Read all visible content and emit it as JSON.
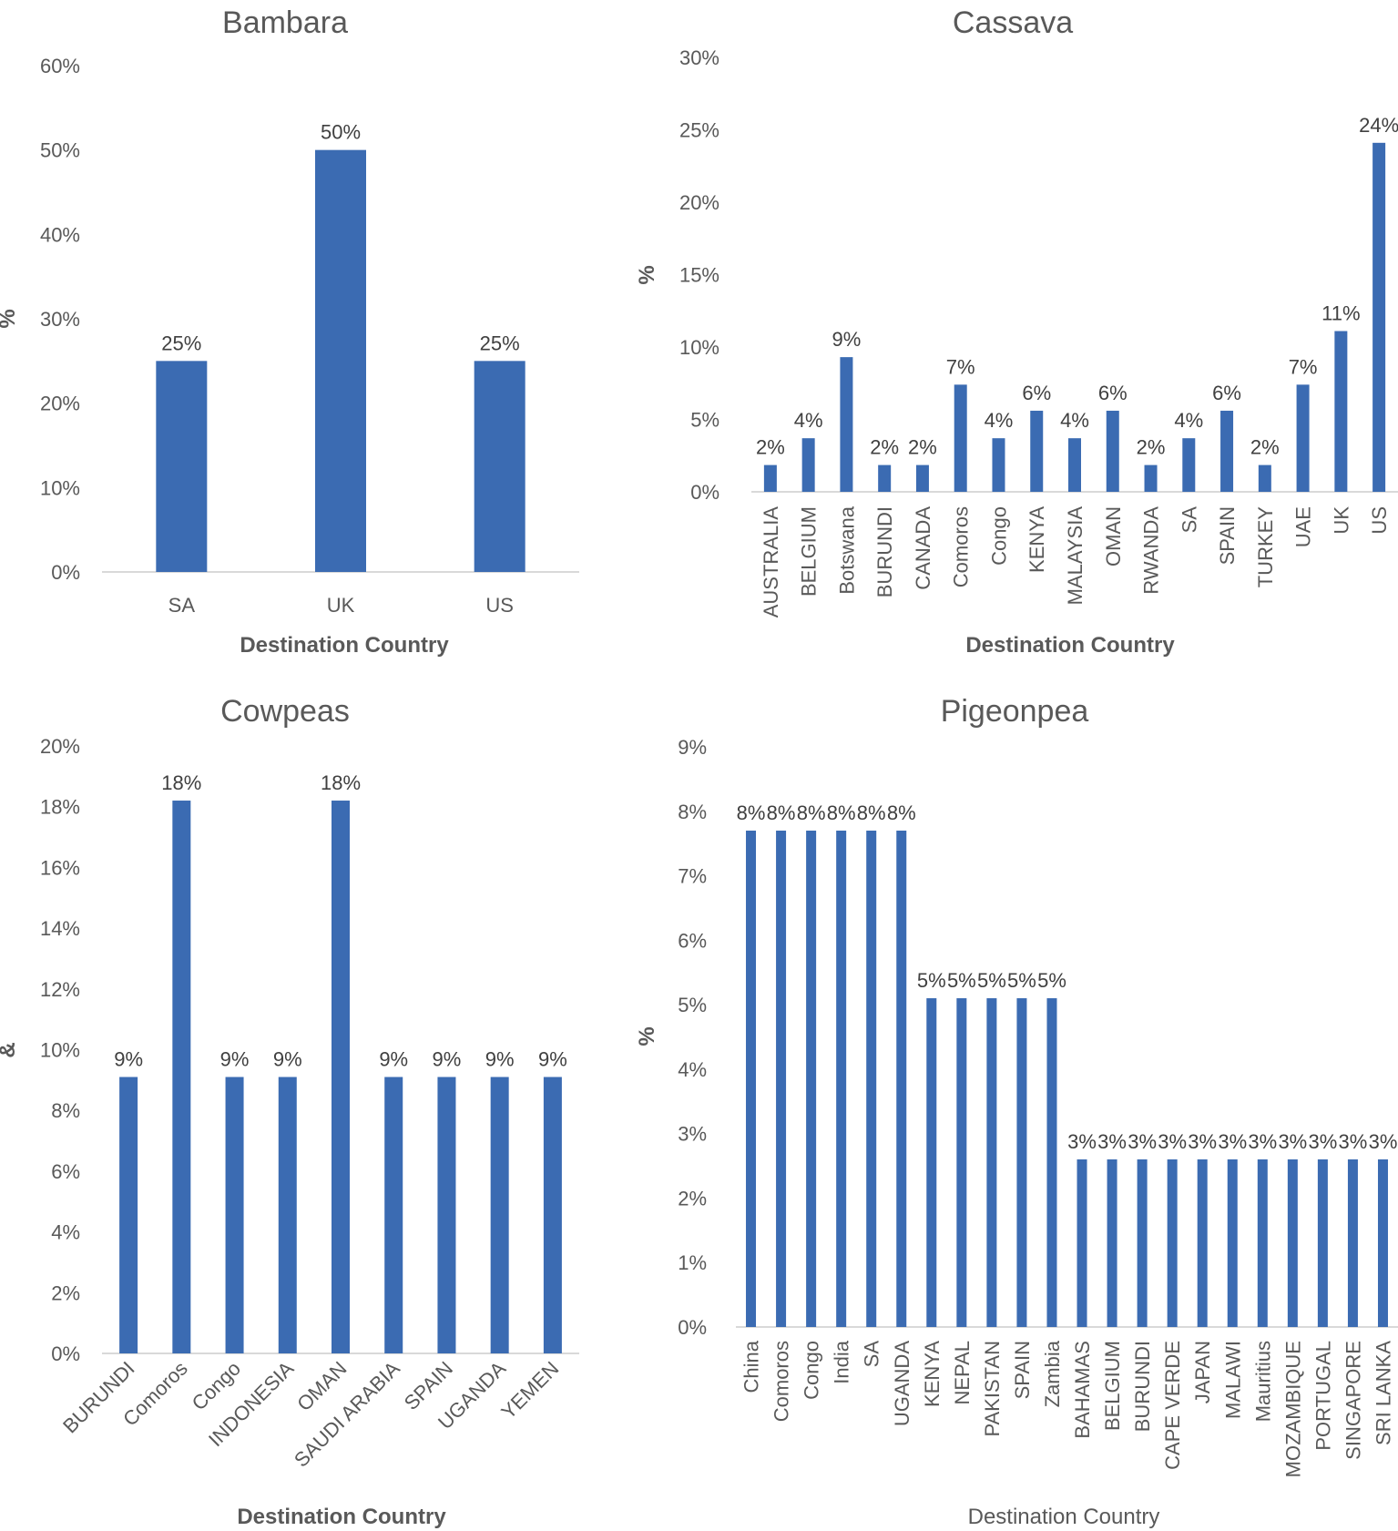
{
  "chart_data": [
    {
      "type": "bar",
      "title": "Bambara",
      "xlabel": "Destination Country",
      "ylabel": "%",
      "ylim": [
        0,
        60
      ],
      "yticks": [
        "0%",
        "10%",
        "20%",
        "30%",
        "40%",
        "50%",
        "60%"
      ],
      "categories": [
        "SA",
        "UK",
        "US"
      ],
      "values": [
        25,
        50,
        25
      ],
      "labels": [
        "25%",
        "50%",
        "25%"
      ]
    },
    {
      "type": "bar",
      "title": "Cassava",
      "xlabel": "Destination Country",
      "ylabel": "%",
      "ylim": [
        0,
        30
      ],
      "yticks": [
        "0%",
        "5%",
        "10%",
        "15%",
        "20%",
        "25%",
        "30%"
      ],
      "categories": [
        "AUSTRALIA",
        "BELGIUM",
        "Botswana",
        "BURUNDI",
        "CANADA",
        "Comoros",
        "Congo",
        "KENYA",
        "MALAYSIA",
        "OMAN",
        "RWANDA",
        "SA",
        "SPAIN",
        "TURKEY",
        "UAE",
        "UK",
        "US"
      ],
      "values": [
        1.85,
        3.7,
        9.3,
        1.85,
        1.85,
        7.4,
        3.7,
        5.6,
        3.7,
        5.6,
        1.85,
        3.7,
        5.6,
        1.85,
        7.4,
        11.1,
        24.1
      ],
      "labels": [
        "2%",
        "4%",
        "9%",
        "2%",
        "2%",
        "7%",
        "4%",
        "6%",
        "4%",
        "6%",
        "2%",
        "4%",
        "6%",
        "2%",
        "7%",
        "11%",
        "24%"
      ]
    },
    {
      "type": "bar",
      "title": "Cowpeas",
      "xlabel": "Destination Country",
      "ylabel": "&",
      "ylim": [
        0,
        20
      ],
      "yticks": [
        "0%",
        "2%",
        "4%",
        "6%",
        "8%",
        "10%",
        "12%",
        "14%",
        "16%",
        "18%",
        "20%"
      ],
      "categories": [
        "BURUNDI",
        "Comoros",
        "Congo",
        "INDONESIA",
        "OMAN",
        "SAUDI ARABIA",
        "SPAIN",
        "UGANDA",
        "YEMEN"
      ],
      "values": [
        9.1,
        18.2,
        9.1,
        9.1,
        18.2,
        9.1,
        9.1,
        9.1,
        9.1
      ],
      "labels": [
        "9%",
        "18%",
        "9%",
        "9%",
        "18%",
        "9%",
        "9%",
        "9%",
        "9%"
      ]
    },
    {
      "type": "bar",
      "title": "Pigeonpea",
      "xlabel": "Destination Country",
      "ylabel": "%",
      "ylim": [
        0,
        9
      ],
      "yticks": [
        "0%",
        "1%",
        "2%",
        "3%",
        "4%",
        "5%",
        "6%",
        "7%",
        "8%",
        "9%"
      ],
      "categories": [
        "China",
        "Comoros",
        "Congo",
        "India",
        "SA",
        "UGANDA",
        "KENYA",
        "NEPAL",
        "PAKISTAN",
        "SPAIN",
        "Zambia",
        "BAHAMAS",
        "BELGIUM",
        "BURUNDI",
        "CAPE VERDE",
        "JAPAN",
        "MALAWI",
        "Mauritius",
        "MOZAMBIQUE",
        "PORTUGAL",
        "SINGAPORE",
        "SRI LANKA"
      ],
      "values": [
        7.7,
        7.7,
        7.7,
        7.7,
        7.7,
        7.7,
        5.1,
        5.1,
        5.1,
        5.1,
        5.1,
        2.6,
        2.6,
        2.6,
        2.6,
        2.6,
        2.6,
        2.6,
        2.6,
        2.6,
        2.6,
        2.6
      ],
      "labels": [
        "8%",
        "8%",
        "8%",
        "8%",
        "8%",
        "8%",
        "5%",
        "5%",
        "5%",
        "5%",
        "5%",
        "3%",
        "3%",
        "3%",
        "3%",
        "3%",
        "3%",
        "3%",
        "3%",
        "3%",
        "3%",
        "3%"
      ]
    }
  ]
}
